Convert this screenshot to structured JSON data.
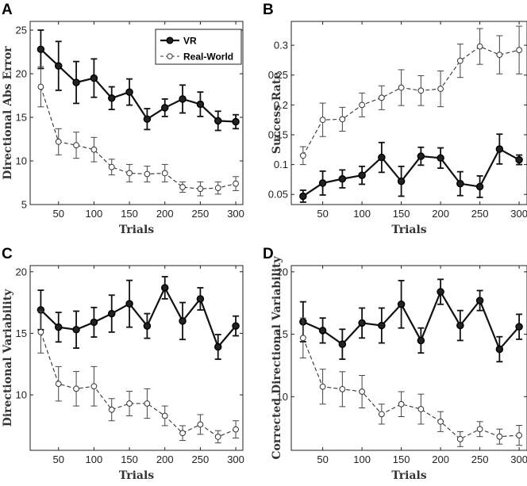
{
  "chart_data": [
    {
      "type": "line",
      "panel": "A",
      "xlabel": "Trials",
      "ylabel": "Directional Abs Error",
      "x": [
        25,
        50,
        75,
        100,
        125,
        150,
        175,
        200,
        225,
        250,
        275,
        300
      ],
      "xlim": [
        10,
        310
      ],
      "ylim": [
        5,
        26
      ],
      "xticks": [
        50,
        100,
        150,
        200,
        250,
        300
      ],
      "yticks": [
        5,
        10,
        15,
        20,
        25
      ],
      "legend": "top-center",
      "series": [
        {
          "name": "VR",
          "style": "solid",
          "values": [
            22.8,
            20.9,
            19.0,
            19.5,
            17.2,
            17.9,
            14.8,
            16.1,
            17.1,
            16.5,
            14.6,
            14.5
          ],
          "err": [
            2.2,
            2.8,
            2.4,
            2.2,
            1.3,
            1.5,
            1.2,
            1.0,
            1.6,
            1.4,
            1.1,
            0.8
          ]
        },
        {
          "name": "Real-World",
          "style": "dashed",
          "values": [
            18.5,
            12.2,
            11.8,
            11.3,
            9.3,
            8.6,
            8.5,
            8.6,
            7.0,
            6.8,
            6.9,
            7.4
          ],
          "err": [
            2.3,
            1.5,
            1.5,
            1.4,
            0.9,
            1.0,
            0.9,
            1.0,
            0.6,
            0.8,
            0.7,
            0.8
          ]
        }
      ]
    },
    {
      "type": "line",
      "panel": "B",
      "xlabel": "Trials",
      "ylabel": "Success Rate",
      "x": [
        25,
        50,
        75,
        100,
        125,
        150,
        175,
        200,
        225,
        250,
        275,
        300
      ],
      "xlim": [
        10,
        310
      ],
      "ylim": [
        0.033,
        0.34
      ],
      "xticks": [
        50,
        100,
        150,
        200,
        250,
        300
      ],
      "yticks": [
        0.05,
        0.1,
        0.15,
        0.2,
        0.25,
        0.3
      ],
      "series": [
        {
          "name": "VR",
          "style": "solid",
          "values": [
            0.047,
            0.069,
            0.076,
            0.082,
            0.112,
            0.072,
            0.114,
            0.111,
            0.068,
            0.063,
            0.126,
            0.108
          ],
          "err": [
            0.01,
            0.02,
            0.015,
            0.015,
            0.025,
            0.025,
            0.015,
            0.017,
            0.02,
            0.018,
            0.025,
            0.008
          ]
        },
        {
          "name": "Real-World",
          "style": "dashed",
          "values": [
            0.115,
            0.175,
            0.176,
            0.2,
            0.212,
            0.229,
            0.224,
            0.227,
            0.274,
            0.298,
            0.284,
            0.292
          ],
          "err": [
            0.015,
            0.028,
            0.02,
            0.02,
            0.02,
            0.03,
            0.025,
            0.03,
            0.028,
            0.03,
            0.032,
            0.04
          ]
        }
      ]
    },
    {
      "type": "line",
      "panel": "C",
      "xlabel": "Trials",
      "ylabel": "Directional Variability",
      "x": [
        25,
        50,
        75,
        100,
        125,
        150,
        175,
        200,
        225,
        250,
        275,
        300
      ],
      "xlim": [
        10,
        310
      ],
      "ylim": [
        5.5,
        20.5
      ],
      "xticks": [
        50,
        100,
        150,
        200,
        250,
        300
      ],
      "yticks": [
        10,
        15,
        20
      ],
      "series": [
        {
          "name": "VR",
          "style": "solid",
          "values": [
            16.9,
            15.5,
            15.3,
            15.9,
            16.6,
            17.4,
            15.6,
            18.7,
            16.0,
            17.8,
            13.9,
            15.6
          ],
          "err": [
            1.6,
            1.2,
            1.5,
            1.2,
            1.5,
            1.9,
            1.0,
            0.9,
            1.5,
            0.9,
            1.0,
            0.8
          ]
        },
        {
          "name": "Real-World",
          "style": "dashed",
          "values": [
            15.1,
            10.9,
            10.5,
            10.7,
            8.8,
            9.3,
            9.3,
            8.3,
            6.9,
            7.6,
            6.6,
            7.2
          ],
          "err": [
            1.7,
            1.4,
            1.4,
            1.6,
            0.9,
            1.0,
            1.2,
            0.8,
            0.6,
            0.8,
            0.5,
            0.7
          ]
        }
      ]
    },
    {
      "type": "line",
      "panel": "D",
      "xlabel": "Trials",
      "ylabel": "Corrected Directional Variability",
      "x": [
        25,
        50,
        75,
        100,
        125,
        150,
        175,
        200,
        225,
        250,
        275,
        300
      ],
      "xlim": [
        10,
        310
      ],
      "ylim": [
        5.7,
        20.5
      ],
      "xticks": [
        50,
        100,
        150,
        200,
        250,
        300
      ],
      "yticks": [
        10,
        15,
        20
      ],
      "series": [
        {
          "name": "VR",
          "style": "solid",
          "values": [
            16.0,
            15.3,
            14.2,
            15.9,
            15.7,
            17.4,
            14.5,
            18.4,
            15.7,
            17.7,
            13.8,
            15.6
          ],
          "err": [
            1.6,
            1.0,
            1.2,
            1.2,
            1.4,
            1.9,
            1.0,
            1.0,
            1.2,
            0.8,
            1.0,
            1.0
          ]
        },
        {
          "name": "Real-World",
          "style": "dashed",
          "values": [
            14.7,
            10.8,
            10.6,
            10.4,
            8.6,
            9.4,
            9.0,
            8.0,
            6.6,
            7.4,
            6.8,
            6.9
          ],
          "err": [
            1.6,
            1.4,
            1.4,
            1.3,
            0.8,
            1.0,
            1.2,
            0.8,
            0.6,
            0.6,
            0.6,
            0.8
          ]
        }
      ]
    }
  ]
}
